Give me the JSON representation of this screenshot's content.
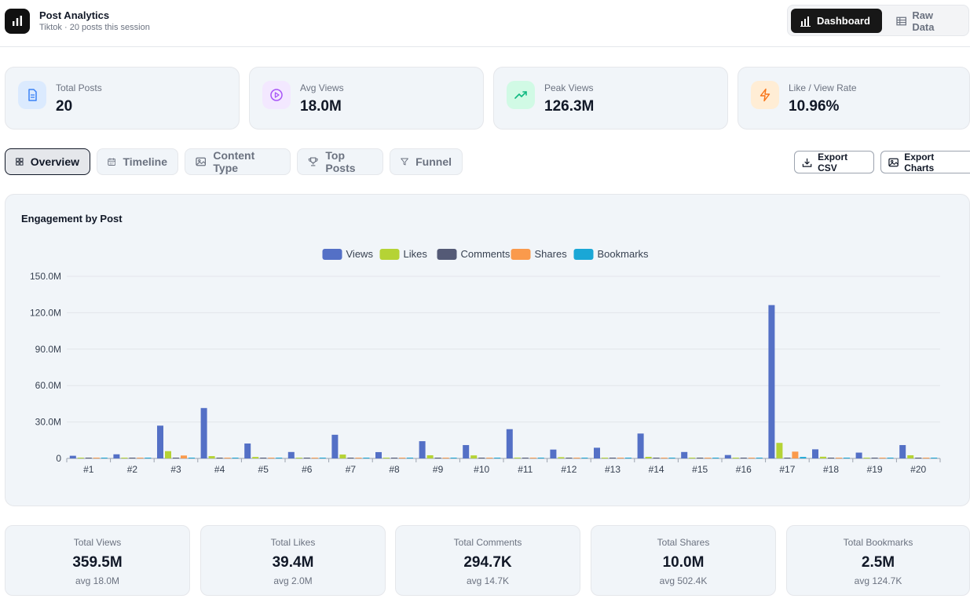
{
  "app": {
    "title": "Post Analytics",
    "subtitle": "Tiktok · 20 posts this session",
    "logo_icon": "bar-chart-icon"
  },
  "view_switch": {
    "dashboard_label": "Dashboard",
    "raw_data_label": "Raw Data",
    "active": "Dashboard"
  },
  "stats": [
    {
      "label": "Total Posts",
      "value": "20",
      "icon": "document-icon",
      "bg": "#dbeafe",
      "color": "#3b82f6"
    },
    {
      "label": "Avg Views",
      "value": "18.0M",
      "icon": "play-circle-icon",
      "bg": "#f3e8ff",
      "color": "#a855f7"
    },
    {
      "label": "Peak Views",
      "value": "126.3M",
      "icon": "trending-up-icon",
      "bg": "#d1fae5",
      "color": "#10b981"
    },
    {
      "label": "Like / View Rate",
      "value": "10.96%",
      "icon": "lightning-icon",
      "bg": "#ffedd5",
      "color": "#f97316"
    }
  ],
  "tabs": [
    {
      "label": "Overview",
      "icon": "grid-icon"
    },
    {
      "label": "Timeline",
      "icon": "calendar-icon"
    },
    {
      "label": "Content Type",
      "icon": "image-icon"
    },
    {
      "label": "Top Posts",
      "icon": "trophy-icon"
    },
    {
      "label": "Funnel",
      "icon": "filter-icon"
    }
  ],
  "active_tab": "Overview",
  "exports": {
    "csv_label": "Export CSV",
    "charts_label": "Export Charts"
  },
  "chart_data": {
    "type": "bar",
    "title": "Engagement by Post",
    "categories": [
      "#1",
      "#2",
      "#3",
      "#4",
      "#5",
      "#6",
      "#7",
      "#8",
      "#9",
      "#10",
      "#11",
      "#12",
      "#13",
      "#14",
      "#15",
      "#16",
      "#17",
      "#18",
      "#19",
      "#20"
    ],
    "series": [
      {
        "name": "Views",
        "color": "#5470c6",
        "values": [
          2.2,
          3.4,
          27.0,
          41.5,
          12.3,
          5.3,
          19.5,
          5.2,
          14.2,
          11.0,
          24.1,
          7.3,
          8.8,
          20.5,
          5.3,
          2.8,
          126.3,
          7.5,
          4.8,
          11.0
        ]
      },
      {
        "name": "Likes",
        "color": "#b5d335",
        "values": [
          0.4,
          0.2,
          6.0,
          1.9,
          1.2,
          0.6,
          3.2,
          0.3,
          2.6,
          2.5,
          0.7,
          1.0,
          0.5,
          1.3,
          0.3,
          0.5,
          12.8,
          1.4,
          0.4,
          2.6
        ]
      },
      {
        "name": "Comments",
        "color": "#545a76",
        "values": [
          0.01,
          0.01,
          0.05,
          0.02,
          0.01,
          0.01,
          0.03,
          0.01,
          0.02,
          0.02,
          0.01,
          0.01,
          0.01,
          0.01,
          0.01,
          0.01,
          0.03,
          0.01,
          0.01,
          0.02
        ]
      },
      {
        "name": "Shares",
        "color": "#fa9a4c",
        "values": [
          0.05,
          0.05,
          2.4,
          0.2,
          0.1,
          0.1,
          0.3,
          0.05,
          0.3,
          0.2,
          0.05,
          0.1,
          0.05,
          0.2,
          0.05,
          0.05,
          5.6,
          0.1,
          0.05,
          0.4
        ]
      },
      {
        "name": "Bookmarks",
        "color": "#1aa7d6",
        "values": [
          0.05,
          0.05,
          0.5,
          0.3,
          0.1,
          0.05,
          0.2,
          0.05,
          0.2,
          0.1,
          0.1,
          0.05,
          0.05,
          0.2,
          0.05,
          0.05,
          1.2,
          0.1,
          0.05,
          0.2
        ]
      }
    ],
    "yticks": [
      "0",
      "30.0M",
      "60.0M",
      "90.0M",
      "120.0M",
      "150.0M"
    ],
    "ylim": [
      0,
      150
    ],
    "unit": "M",
    "grid": true,
    "legend_position": "top-center"
  },
  "summary": [
    {
      "label": "Total Views",
      "value": "359.5M",
      "avg": "avg 18.0M"
    },
    {
      "label": "Total Likes",
      "value": "39.4M",
      "avg": "avg 2.0M"
    },
    {
      "label": "Total Comments",
      "value": "294.7K",
      "avg": "avg 14.7K"
    },
    {
      "label": "Total Shares",
      "value": "10.0M",
      "avg": "avg 502.4K"
    },
    {
      "label": "Total Bookmarks",
      "value": "2.5M",
      "avg": "avg 124.7K"
    }
  ]
}
